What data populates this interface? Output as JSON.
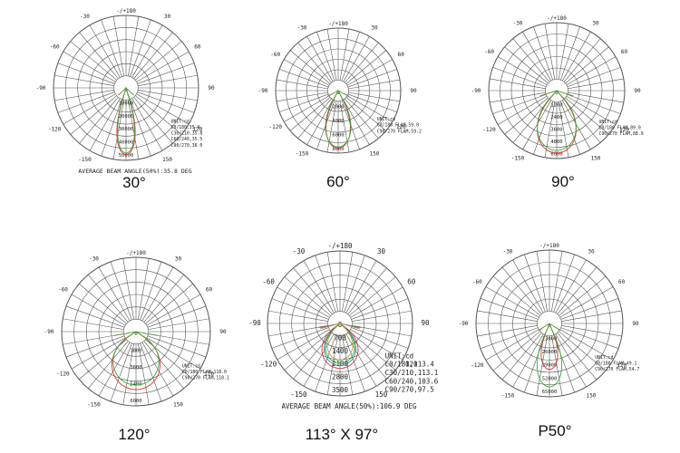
{
  "colors": {
    "grid": "#555555",
    "c0": "#e03030",
    "c90": "#3aaa3a",
    "c60": "#2a8ab0",
    "c270": "#b0a040"
  },
  "diagrams": [
    {
      "caption": "30°",
      "angle_labels": [
        "-/+180",
        "150",
        "-150",
        "120",
        "-120",
        "90",
        "-90",
        "60",
        "-60",
        "30",
        "-30"
      ],
      "radial_labels": [
        "0",
        "10000",
        "20000",
        "30000",
        "40000",
        "50000"
      ],
      "unit": "UNIT:cd",
      "legend": [
        "C0/180,35.9",
        "C30/210,35.8",
        "C60/240,35.5",
        "C90/270,36.0"
      ],
      "footer": "AVERAGE BEAM ANGLE(50%):35.8 DEG"
    },
    {
      "caption": "60°",
      "angle_labels": [
        "-/+180",
        "150",
        "-150",
        "120",
        "-120",
        "90",
        "-90",
        "60",
        "-60",
        "30",
        "-30"
      ],
      "radial_labels": [
        "0",
        "2000",
        "4000",
        "6000",
        "8000"
      ],
      "unit": "UNIT:cd",
      "legend": [
        "C0/180 FLAM,59.0",
        "C90/270 FLAM,59.2"
      ],
      "footer": ""
    },
    {
      "caption": "90°",
      "angle_labels": [
        "-/+180",
        "150",
        "-150",
        "120",
        "-120",
        "90",
        "-90",
        "60",
        "-60",
        "30",
        "-30"
      ],
      "radial_labels": [
        "0",
        "1200",
        "2400",
        "3600",
        "4800",
        "6000"
      ],
      "unit": "UNIT:cd",
      "legend": [
        "C0/180 FLAM,89.0",
        "C90/270 FLAM,88.9"
      ],
      "footer": ""
    },
    {
      "caption": "120°",
      "angle_labels": [
        "-/+180",
        "150",
        "-150",
        "120",
        "-120",
        "90",
        "-90",
        "60",
        "-60",
        "30",
        "-30"
      ],
      "radial_labels": [
        "0",
        "1800",
        "3600",
        "5400",
        "6000"
      ],
      "unit": "UNIT:cd",
      "legend": [
        "C0/180 FLAM,118.0",
        "C90/270 FLAM,118.1"
      ],
      "footer": ""
    },
    {
      "caption": "113° X 97°",
      "angle_labels": [
        "-/+180",
        "150",
        "-150",
        "120",
        "-120",
        "90",
        "-90",
        "60",
        "-60",
        "30",
        "-30"
      ],
      "radial_labels": [
        "0",
        "700",
        "1400",
        "2100",
        "2800",
        "3500"
      ],
      "unit": "UNIT:cd",
      "legend": [
        "C0/180,113.4",
        "C30/210,113.1",
        "C60/240,103.6",
        "C90/270,97.5"
      ],
      "footer": "AVERAGE BEAM ANGLE(50%):106.9 DEG"
    },
    {
      "caption": "P50°",
      "angle_labels": [
        "-/+180",
        "150",
        "-150",
        "120",
        "-120",
        "90",
        "-90",
        "60",
        "-60",
        "30",
        "-30"
      ],
      "radial_labels": [
        "0",
        "13000",
        "26000",
        "39000",
        "52000",
        "65000"
      ],
      "unit": "UNIT:cd",
      "legend": [
        "C0/180 FLAM,49.1",
        "C90/270 FLAM,54.7"
      ],
      "footer": ""
    }
  ]
}
